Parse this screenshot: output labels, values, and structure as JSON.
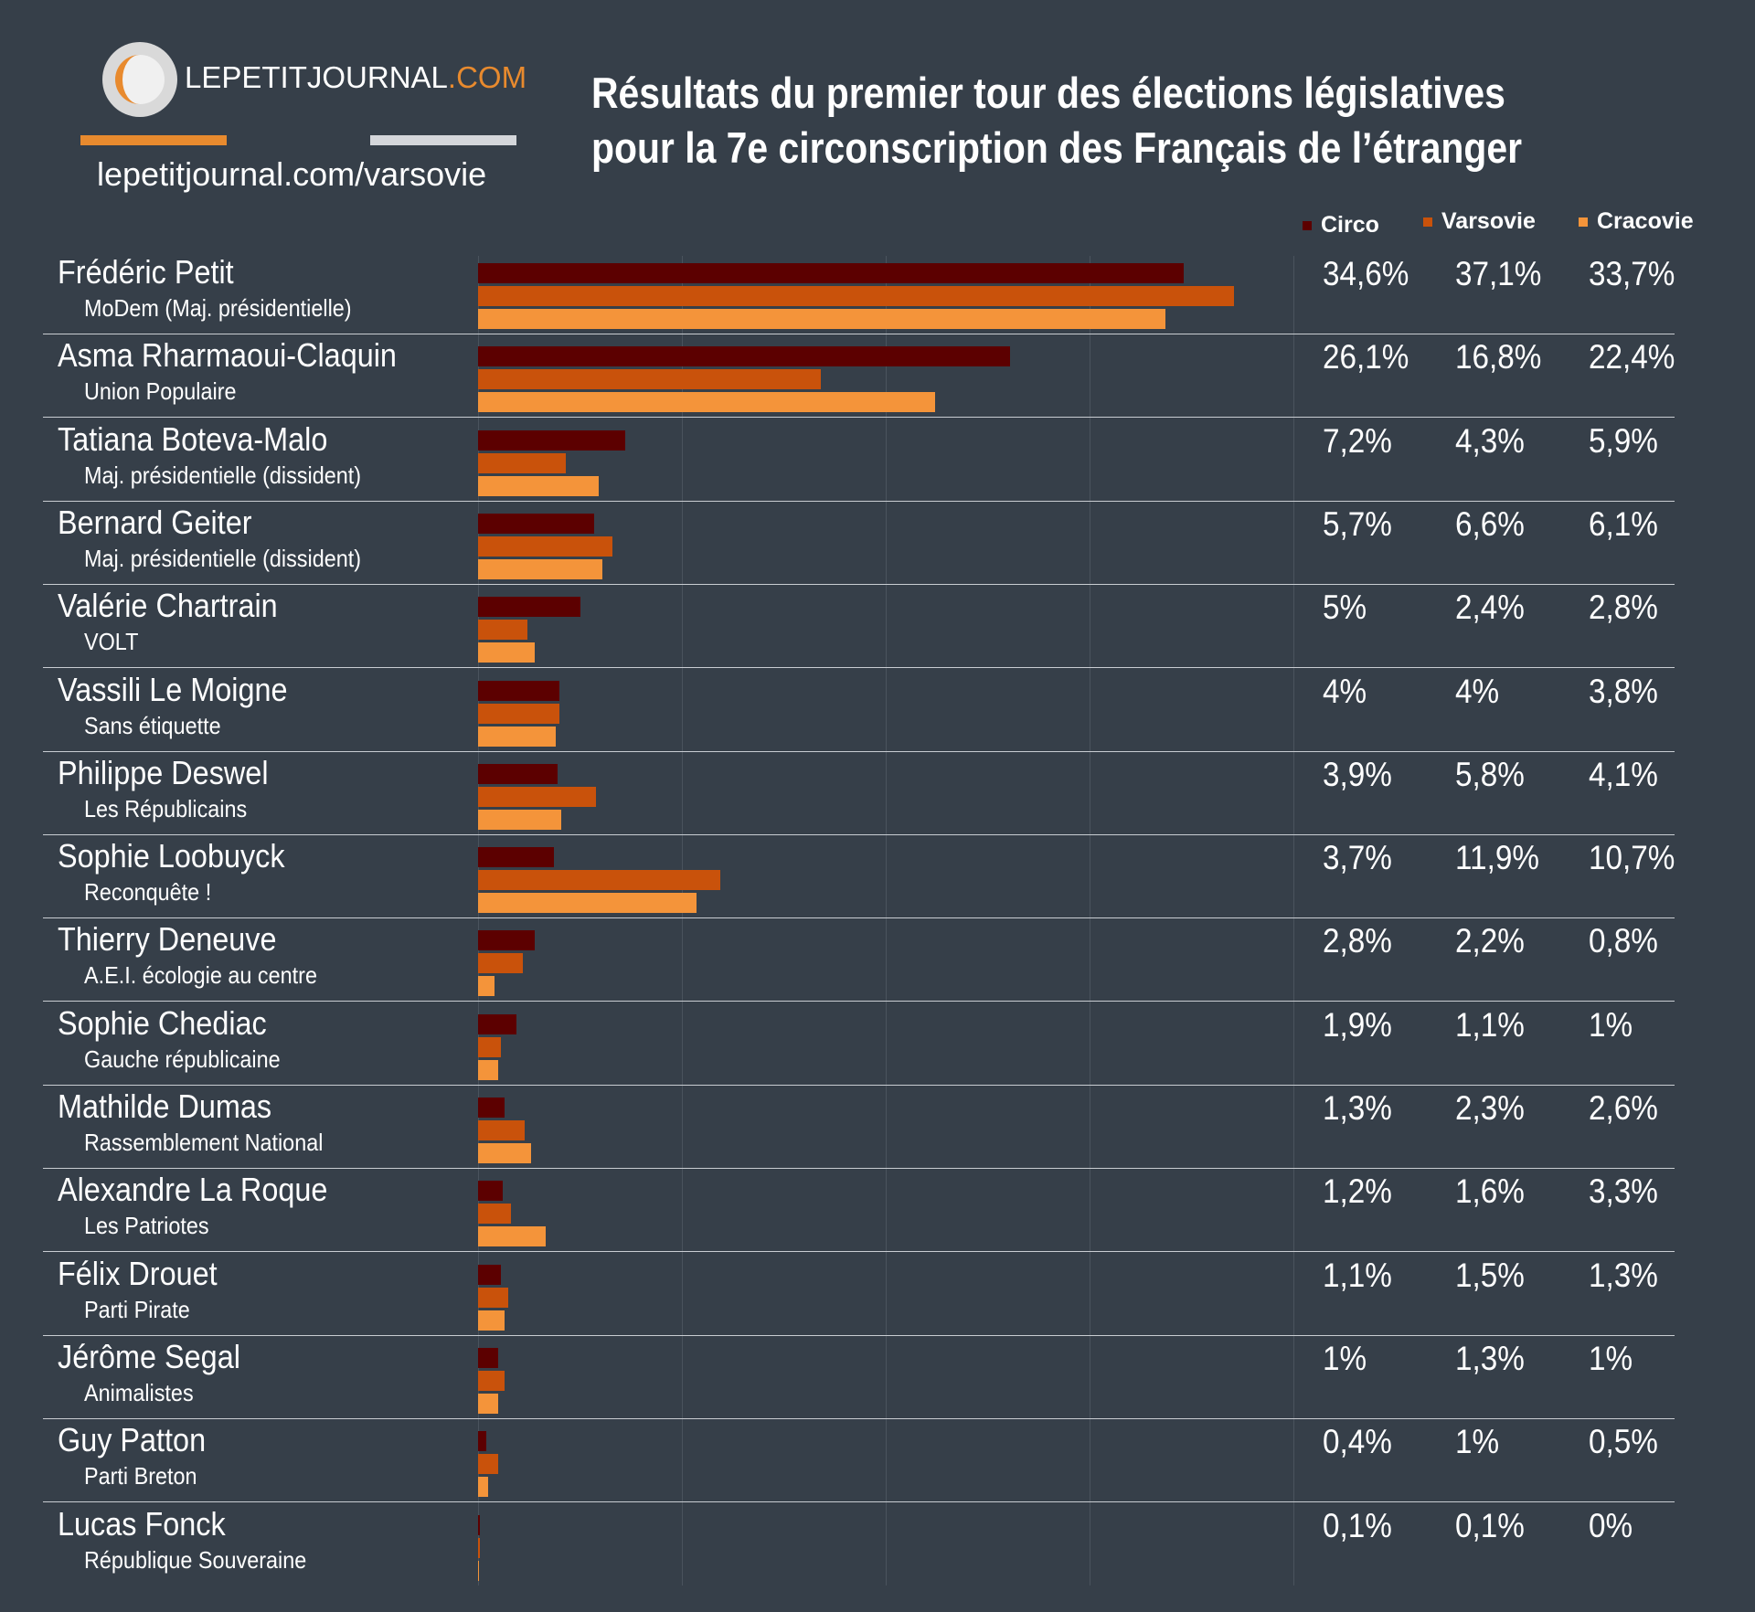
{
  "header": {
    "logo_main": "LEPETITJOURNAL",
    "logo_accent": ".COM",
    "url": "lepetitjournal.com/varsovie",
    "title_line1": "Résultats du premier tour des élections législatives",
    "title_line2": "pour la 7e circonscription des Français de l’étranger"
  },
  "chart_data": {
    "type": "bar",
    "orientation": "horizontal",
    "unit": "%",
    "xlim": [
      0,
      40
    ],
    "grid": true,
    "legend": "top-right",
    "series": [
      {
        "name": "Circo",
        "color": "#5c0000"
      },
      {
        "name": "Varsovie",
        "color": "#c9520b"
      },
      {
        "name": "Cracovie",
        "color": "#f4943a"
      }
    ],
    "rows": [
      {
        "name": "Frédéric Petit",
        "party": "MoDem (Maj. présidentielle)",
        "values": [
          34.6,
          37.1,
          33.7
        ],
        "labels": [
          "34,6%",
          "37,1%",
          "33,7%"
        ]
      },
      {
        "name": "Asma Rharmaoui-Claquin",
        "party": "Union Populaire",
        "values": [
          26.1,
          16.8,
          22.4
        ],
        "labels": [
          "26,1%",
          "16,8%",
          "22,4%"
        ]
      },
      {
        "name": "Tatiana Boteva-Malo",
        "party": "Maj. présidentielle (dissident)",
        "values": [
          7.2,
          4.3,
          5.9
        ],
        "labels": [
          "7,2%",
          "4,3%",
          "5,9%"
        ]
      },
      {
        "name": "Bernard Geiter",
        "party": "Maj. présidentielle (dissident)",
        "values": [
          5.7,
          6.6,
          6.1
        ],
        "labels": [
          "5,7%",
          "6,6%",
          "6,1%"
        ]
      },
      {
        "name": "Valérie Chartrain",
        "party": "VOLT",
        "values": [
          5,
          2.4,
          2.8
        ],
        "labels": [
          "5%",
          "2,4%",
          "2,8%"
        ]
      },
      {
        "name": "Vassili Le Moigne",
        "party": "Sans étiquette",
        "values": [
          4,
          4,
          3.8
        ],
        "labels": [
          "4%",
          "4%",
          "3,8%"
        ]
      },
      {
        "name": "Philippe Deswel",
        "party": "Les Républicains",
        "values": [
          3.9,
          5.8,
          4.1
        ],
        "labels": [
          "3,9%",
          "5,8%",
          "4,1%"
        ]
      },
      {
        "name": "Sophie Loobuyck",
        "party": "Reconquête !",
        "values": [
          3.7,
          11.9,
          10.7
        ],
        "labels": [
          "3,7%",
          "11,9%",
          "10,7%"
        ]
      },
      {
        "name": "Thierry Deneuve",
        "party": "A.E.I. écologie au centre",
        "values": [
          2.8,
          2.2,
          0.8
        ],
        "labels": [
          "2,8%",
          "2,2%",
          "0,8%"
        ]
      },
      {
        "name": "Sophie Chediac",
        "party": "Gauche républicaine",
        "values": [
          1.9,
          1.1,
          1
        ],
        "labels": [
          "1,9%",
          "1,1%",
          "1%"
        ]
      },
      {
        "name": "Mathilde Dumas",
        "party": "Rassemblement National",
        "values": [
          1.3,
          2.3,
          2.6
        ],
        "labels": [
          "1,3%",
          "2,3%",
          "2,6%"
        ]
      },
      {
        "name": "Alexandre La Roque",
        "party": "Les Patriotes",
        "values": [
          1.2,
          1.6,
          3.3
        ],
        "labels": [
          "1,2%",
          "1,6%",
          "3,3%"
        ]
      },
      {
        "name": "Félix Drouet",
        "party": "Parti Pirate",
        "values": [
          1.1,
          1.5,
          1.3
        ],
        "labels": [
          "1,1%",
          "1,5%",
          "1,3%"
        ]
      },
      {
        "name": "Jérôme Segal",
        "party": "Animalistes",
        "values": [
          1,
          1.3,
          1
        ],
        "labels": [
          "1%",
          "1,3%",
          "1%"
        ]
      },
      {
        "name": "Guy Patton",
        "party": "Parti Breton",
        "values": [
          0.4,
          1,
          0.5
        ],
        "labels": [
          "0,4%",
          "1%",
          "0,5%"
        ]
      },
      {
        "name": "Lucas Fonck",
        "party": "République Souveraine",
        "values": [
          0.1,
          0.1,
          0
        ],
        "labels": [
          "0,1%",
          "0,1%",
          "0%"
        ]
      }
    ]
  }
}
